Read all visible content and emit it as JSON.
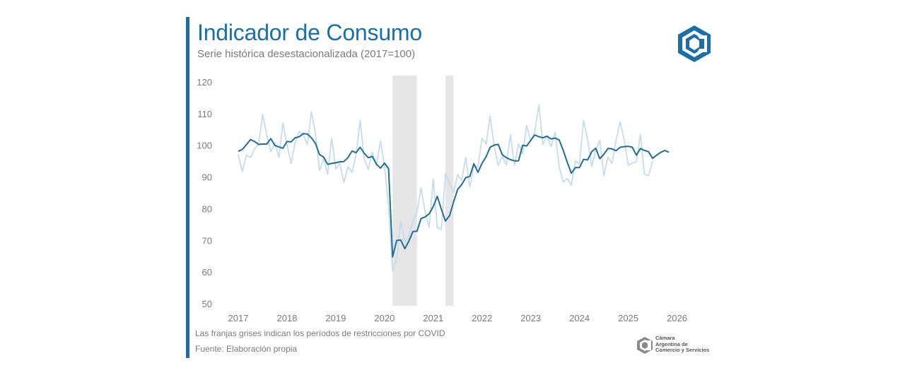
{
  "header": {
    "title": "Indicador de Consumo",
    "subtitle": "Serie histórica desestacionalizada (2017=100)"
  },
  "footer": {
    "note": "Las franjas grises indican los períodos de restricciones por COVID",
    "source": "Fuente: Elaboración propia",
    "org_line1": "Cámara",
    "org_line2": "Argentina de",
    "org_line3": "Comercio y Servicios"
  },
  "colors": {
    "accent": "#1a6fa8",
    "main_series": "#1f6e98",
    "light_series": "#c6dcec",
    "covid_band": "#e6e6e6",
    "axis_text": "#7a7a7a"
  },
  "chart_data": {
    "type": "line",
    "title": "Indicador de Consumo",
    "subtitle": "Serie histórica desestacionalizada (2017=100)",
    "xlabel": "",
    "ylabel": "",
    "ylim": [
      50,
      120
    ],
    "y_ticks": [
      50,
      60,
      70,
      80,
      90,
      100,
      110,
      120
    ],
    "x_ticks": [
      "2017",
      "2018",
      "2019",
      "2020",
      "2021",
      "2022",
      "2023",
      "2024",
      "2025",
      "2026"
    ],
    "grid": false,
    "legend": "none",
    "shaded_periods": [
      {
        "start": "2020-03",
        "end": "2020-09"
      },
      {
        "start": "2021-04",
        "end": "2021-06"
      }
    ],
    "x_start": "2017-01",
    "series": [
      {
        "values": [
          97.3,
          91.9,
          97.2,
          96.3,
          99.1,
          100.6,
          110.0,
          103.6,
          98.2,
          100.9,
          96.4,
          107.3,
          100.4,
          94.5,
          101.1,
          104.6,
          103.6,
          100.4,
          110.8,
          103.9,
          92.3,
          96.0,
          91.1,
          102.4,
          92.8,
          94.5,
          88.5,
          93.4,
          91.7,
          97.2,
          108.1,
          96.0,
          92.6,
          98.1,
          93.8,
          101.5,
          93.8,
          80.7,
          60.5,
          64.5,
          76.4,
          69.6,
          71.5,
          76.3,
          79.1,
          86.8,
          79.2,
          74.3,
          89.6,
          74.3,
          73.7,
          91.2,
          88.3,
          85.3,
          91.0,
          89.1,
          96.4,
          87.0,
          93.8,
          93.3,
          102.4,
          100.5,
          109.5,
          99.9,
          93.9,
          96.7,
          94.0,
          103.5,
          93.9,
          100.7,
          97.5,
          106.5,
          101.5,
          104.6,
          112.9,
          100.5,
          103.2,
          99.8,
          104.3,
          93.4,
          88.6,
          89.7,
          87.6,
          95.3,
          94.2,
          108.1,
          102.2,
          93.5,
          98.7,
          101.8,
          90.6,
          96.5,
          94.5,
          101.7,
          107.6,
          102.1,
          93.9,
          94.6,
          95.0,
          103.7,
          91.1,
          90.6,
          95.2
        ]
      },
      {
        "values": [
          98.3,
          98.9,
          100.4,
          102.0,
          101.4,
          100.5,
          100.6,
          100.6,
          102.3,
          100.2,
          99.7,
          99.3,
          101.4,
          101.3,
          102.6,
          102.9,
          103.9,
          103.8,
          102.6,
          100.8,
          97.3,
          96.5,
          94.2,
          94.5,
          94.7,
          95.0,
          95.1,
          96.3,
          98.4,
          97.9,
          99.6,
          97.7,
          96.3,
          96.7,
          94.3,
          93.0,
          94.6,
          92.8,
          65.0,
          70.2,
          70.3,
          67.6,
          70.0,
          73.0,
          73.1,
          77.1,
          77.6,
          78.6,
          80.9,
          84.1,
          80.0,
          76.3,
          78.0,
          82.3,
          86.3,
          87.8,
          90.0,
          90.4,
          94.4,
          91.7,
          94.5,
          96.6,
          99.6,
          100.3,
          100.5,
          97.2,
          96.3,
          95.7,
          95.3,
          95.3,
          100.2,
          100.0,
          101.8,
          103.5,
          102.9,
          102.6,
          103.1,
          102.2,
          102.5,
          101.9,
          98.6,
          94.8,
          91.4,
          93.2,
          93.2,
          95.8,
          95.6,
          98.2,
          99.3,
          96.0,
          97.4,
          99.2,
          99.1,
          98.5,
          99.6,
          99.8,
          99.9,
          99.6,
          97.1,
          99.2,
          98.6,
          98.2,
          96.1,
          97.1,
          98.0,
          98.6,
          98.0
        ]
      }
    ]
  }
}
